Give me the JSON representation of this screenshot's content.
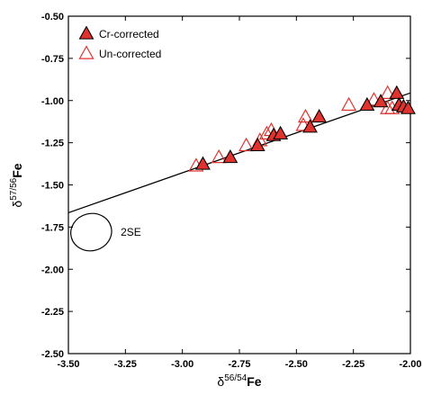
{
  "chart_data": {
    "type": "scatter",
    "title": "",
    "xlabel": {
      "prefix": "δ",
      "sup": "56/54",
      "suffix": "Fe"
    },
    "ylabel": {
      "prefix": "δ",
      "sup": "57/56",
      "suffix": "Fe"
    },
    "xlim": [
      -3.5,
      -2.0
    ],
    "ylim": [
      -2.5,
      -0.5
    ],
    "x_ticks": [
      "-3.50",
      "-3.25",
      "-3.00",
      "-2.75",
      "-2.50",
      "-2.25",
      "-2.00"
    ],
    "y_ticks": [
      "-0.50",
      "-0.75",
      "-1.00",
      "-1.25",
      "-1.50",
      "-1.75",
      "-2.00",
      "-2.25",
      "-2.50"
    ],
    "legend_position": "top-left",
    "grid": false,
    "colors": {
      "filled": "#e0322e",
      "open": "#e0322e",
      "line": "#000000"
    },
    "series": [
      {
        "name": "Cr-corrected",
        "marker": "filled-triangle",
        "points": [
          [
            -2.91,
            -1.38
          ],
          [
            -2.79,
            -1.34
          ],
          [
            -2.67,
            -1.27
          ],
          [
            -2.6,
            -1.21
          ],
          [
            -2.57,
            -1.2
          ],
          [
            -2.44,
            -1.16
          ],
          [
            -2.4,
            -1.1
          ],
          [
            -2.19,
            -1.03
          ],
          [
            -2.13,
            -1.01
          ],
          [
            -2.06,
            -0.96
          ],
          [
            -2.05,
            -1.03
          ],
          [
            -2.03,
            -1.04
          ],
          [
            -2.01,
            -1.05
          ]
        ]
      },
      {
        "name": "Un-corrected",
        "marker": "open-triangle",
        "points": [
          [
            -2.94,
            -1.39
          ],
          [
            -2.84,
            -1.34
          ],
          [
            -2.72,
            -1.27
          ],
          [
            -2.66,
            -1.24
          ],
          [
            -2.63,
            -1.2
          ],
          [
            -2.61,
            -1.18
          ],
          [
            -2.46,
            -1.1
          ],
          [
            -2.47,
            -1.15
          ],
          [
            -2.27,
            -1.03
          ],
          [
            -2.16,
            -1.0
          ],
          [
            -2.1,
            -0.96
          ],
          [
            -2.08,
            -1.05
          ],
          [
            -2.1,
            -1.05
          ],
          [
            -2.05,
            -1.03
          ]
        ]
      }
    ],
    "trendline": {
      "x": [
        -3.5,
        -2.0
      ],
      "y": [
        -1.665,
        -0.955
      ]
    },
    "annotations": [
      {
        "text": "2SE",
        "center": [
          -3.4,
          -1.78
        ],
        "width": 0.09,
        "height": 0.11,
        "angle": -15
      }
    ]
  }
}
